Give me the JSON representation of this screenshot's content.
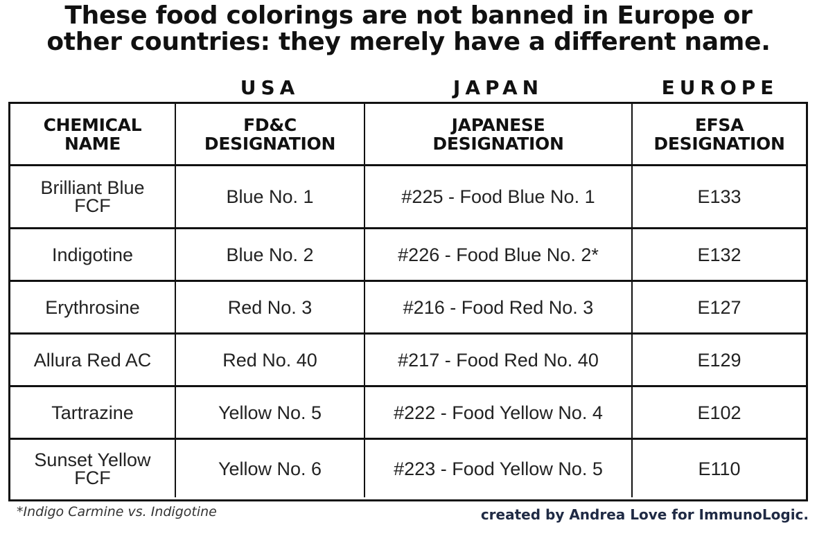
{
  "title": {
    "line1": "These food colorings are not banned in Europe or",
    "line2": "other countries: they merely have a different name."
  },
  "countries": {
    "usa": "USA",
    "japan": "JAPAN",
    "europe": "EUROPE"
  },
  "table": {
    "columns": [
      {
        "line1": "CHEMICAL",
        "line2": "NAME"
      },
      {
        "line1": "FD&C",
        "line2": "DESIGNATION"
      },
      {
        "line1": "JAPANESE",
        "line2": "DESIGNATION"
      },
      {
        "line1": "EFSA",
        "line2": "DESIGNATION"
      }
    ],
    "rows": [
      [
        "Brilliant Blue FCF",
        "Blue No. 1",
        "#225 - Food Blue No. 1",
        "E133"
      ],
      [
        "Indigotine",
        "Blue No. 2",
        "#226 - Food Blue No. 2*",
        "E132"
      ],
      [
        "Erythrosine",
        "Red No. 3",
        "#216 - Food Red No. 3",
        "E127"
      ],
      [
        "Allura Red AC",
        "Red No. 40",
        "#217 - Food Red No. 40",
        "E129"
      ],
      [
        "Tartrazine",
        "Yellow No. 5",
        "#222 - Food Yellow No. 4",
        "E102"
      ],
      [
        "Sunset Yellow FCF",
        "Yellow No. 6",
        "#223 - Food Yellow No. 5",
        "E110"
      ]
    ]
  },
  "footnote": "*Indigo Carmine vs. Indigotine",
  "credit": "created by Andrea Love for ImmunoLogic."
}
